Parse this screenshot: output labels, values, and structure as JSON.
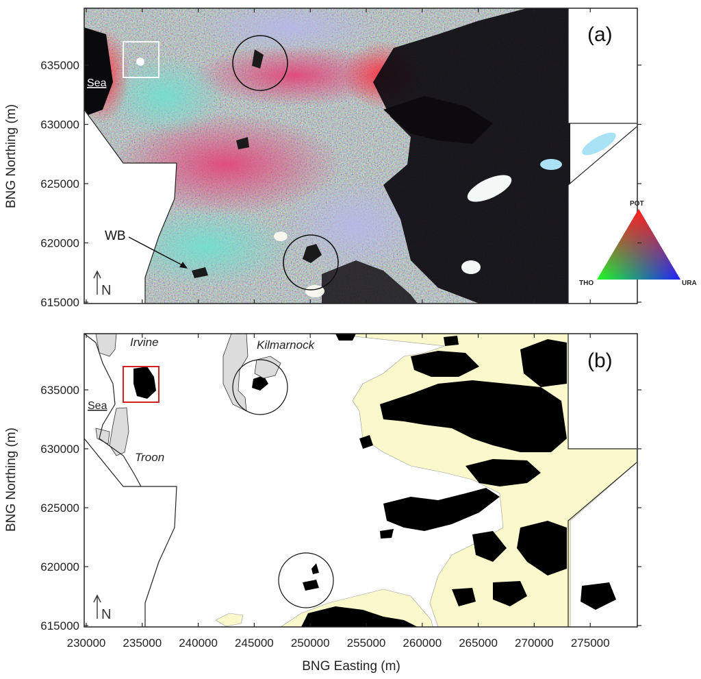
{
  "figure": {
    "xlabel": "BNG Easting (m)",
    "ylabel_a": "BNG Northing (m)",
    "ylabel_b": "BNG Northing (m)",
    "x_ticks": [
      "230000",
      "235000",
      "240000",
      "245000",
      "250000",
      "255000",
      "260000",
      "265000",
      "270000",
      "275000"
    ],
    "y_ticks_a": [
      "615000",
      "620000",
      "625000",
      "630000",
      "635000"
    ],
    "y_ticks_b": [
      "615000",
      "620000",
      "625000",
      "630000",
      "635000"
    ]
  },
  "panel_a": {
    "label": "(a)",
    "sea_label": "Sea",
    "wb_label": "WB",
    "north_label": "N",
    "ternary": {
      "top": "POT",
      "left": "THO",
      "right": "URA"
    }
  },
  "panel_b": {
    "label": "(b)",
    "sea_label": "Sea",
    "north_label": "N",
    "towns": [
      "Irvine",
      "Kilmarnock",
      "Troon"
    ]
  },
  "colors": {
    "peat_fill": "#000000",
    "upland_fill": "#fbf8cc",
    "urban_fill": "#dcdcdc",
    "highlight_box_a": "#ffffff",
    "highlight_box_b": "#d21f1f"
  }
}
